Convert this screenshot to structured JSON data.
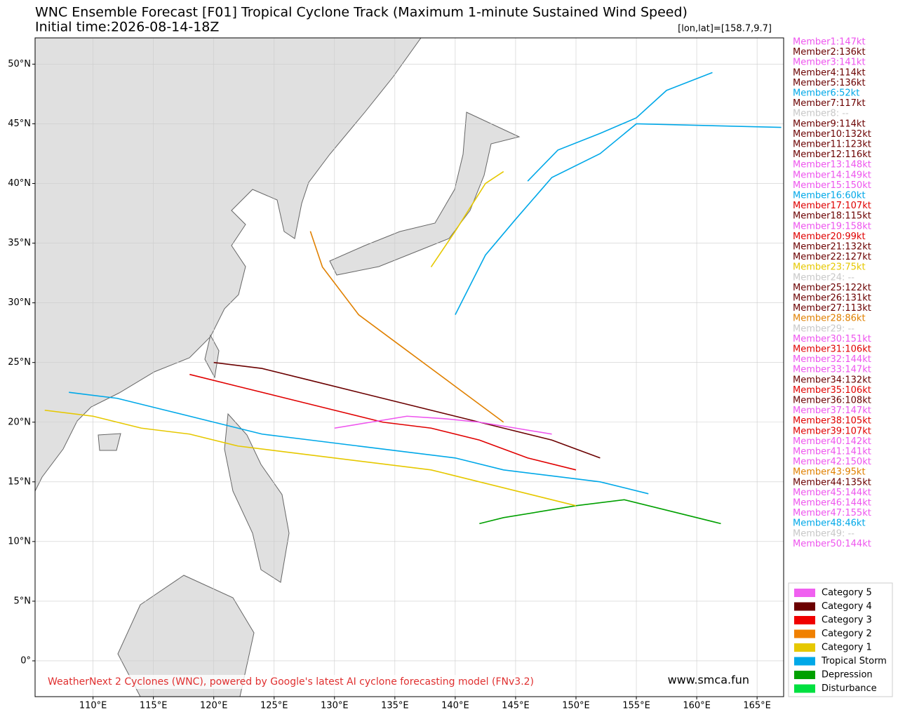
{
  "header": {
    "title": "WNC Ensemble Forecast [F01] Tropical Cyclone Track (Maximum 1-minute Sustained Wind Speed)",
    "subtitle": "Initial time:2026-08-14-18Z",
    "cursor": "[lon,lat]=[158.7,9.7]"
  },
  "map": {
    "xlim": [
      105.2,
      167.2
    ],
    "ylim": [
      -3,
      52.2
    ],
    "xticks": [
      {
        "value": 110,
        "label": "110°E"
      },
      {
        "value": 115,
        "label": "115°E"
      },
      {
        "value": 120,
        "label": "120°E"
      },
      {
        "value": 125,
        "label": "125°E"
      },
      {
        "value": 130,
        "label": "130°E"
      },
      {
        "value": 135,
        "label": "135°E"
      },
      {
        "value": 140,
        "label": "140°E"
      },
      {
        "value": 145,
        "label": "145°E"
      },
      {
        "value": 150,
        "label": "150°E"
      },
      {
        "value": 155,
        "label": "155°E"
      },
      {
        "value": 160,
        "label": "160°E"
      },
      {
        "value": 165,
        "label": "165°E"
      }
    ],
    "yticks": [
      {
        "value": 0,
        "label": "0°"
      },
      {
        "value": 5,
        "label": "5°N"
      },
      {
        "value": 10,
        "label": "10°N"
      },
      {
        "value": 15,
        "label": "15°N"
      },
      {
        "value": 20,
        "label": "20°N"
      },
      {
        "value": 25,
        "label": "25°N"
      },
      {
        "value": 30,
        "label": "30°N"
      },
      {
        "value": 35,
        "label": "35°N"
      },
      {
        "value": 40,
        "label": "40°N"
      },
      {
        "value": 45,
        "label": "45°N"
      },
      {
        "value": 50,
        "label": "50°N"
      }
    ],
    "grid": true
  },
  "members": [
    {
      "label": "Member1:147kt",
      "color": "#ee55ee"
    },
    {
      "label": "Member2:136kt",
      "color": "#6b0000"
    },
    {
      "label": "Member3:141kt",
      "color": "#ee55ee"
    },
    {
      "label": "Member4:114kt",
      "color": "#6b0000"
    },
    {
      "label": "Member5:136kt",
      "color": "#6b0000"
    },
    {
      "label": "Member6:52kt",
      "color": "#00a8e8"
    },
    {
      "label": "Member7:117kt",
      "color": "#6b0000"
    },
    {
      "label": "Member8: --",
      "color": "#c8c8c8"
    },
    {
      "label": "Member9:114kt",
      "color": "#6b0000"
    },
    {
      "label": "Member10:132kt",
      "color": "#6b0000"
    },
    {
      "label": "Member11:123kt",
      "color": "#6b0000"
    },
    {
      "label": "Member12:116kt",
      "color": "#6b0000"
    },
    {
      "label": "Member13:148kt",
      "color": "#ee55ee"
    },
    {
      "label": "Member14:149kt",
      "color": "#ee55ee"
    },
    {
      "label": "Member15:150kt",
      "color": "#ee55ee"
    },
    {
      "label": "Member16:60kt",
      "color": "#00a8e8"
    },
    {
      "label": "Member17:107kt",
      "color": "#e00000"
    },
    {
      "label": "Member18:115kt",
      "color": "#6b0000"
    },
    {
      "label": "Member19:158kt",
      "color": "#ee55ee"
    },
    {
      "label": "Member20:99kt",
      "color": "#e00000"
    },
    {
      "label": "Member21:132kt",
      "color": "#6b0000"
    },
    {
      "label": "Member22:127kt",
      "color": "#6b0000"
    },
    {
      "label": "Member23:75kt",
      "color": "#e6c800"
    },
    {
      "label": "Member24: --",
      "color": "#c8c8c8"
    },
    {
      "label": "Member25:122kt",
      "color": "#6b0000"
    },
    {
      "label": "Member26:131kt",
      "color": "#6b0000"
    },
    {
      "label": "Member27:113kt",
      "color": "#6b0000"
    },
    {
      "label": "Member28:86kt",
      "color": "#e08000"
    },
    {
      "label": "Member29: --",
      "color": "#c8c8c8"
    },
    {
      "label": "Member30:151kt",
      "color": "#ee55ee"
    },
    {
      "label": "Member31:106kt",
      "color": "#e00000"
    },
    {
      "label": "Member32:144kt",
      "color": "#ee55ee"
    },
    {
      "label": "Member33:147kt",
      "color": "#ee55ee"
    },
    {
      "label": "Member34:132kt",
      "color": "#6b0000"
    },
    {
      "label": "Member35:106kt",
      "color": "#e00000"
    },
    {
      "label": "Member36:108kt",
      "color": "#6b0000"
    },
    {
      "label": "Member37:147kt",
      "color": "#ee55ee"
    },
    {
      "label": "Member38:105kt",
      "color": "#e00000"
    },
    {
      "label": "Member39:107kt",
      "color": "#e00000"
    },
    {
      "label": "Member40:142kt",
      "color": "#ee55ee"
    },
    {
      "label": "Member41:141kt",
      "color": "#ee55ee"
    },
    {
      "label": "Member42:150kt",
      "color": "#ee55ee"
    },
    {
      "label": "Member43:95kt",
      "color": "#e08000"
    },
    {
      "label": "Member44:135kt",
      "color": "#6b0000"
    },
    {
      "label": "Member45:144kt",
      "color": "#ee55ee"
    },
    {
      "label": "Member46:144kt",
      "color": "#ee55ee"
    },
    {
      "label": "Member47:155kt",
      "color": "#ee55ee"
    },
    {
      "label": "Member48:46kt",
      "color": "#00a8e8"
    },
    {
      "label": "Member49: --",
      "color": "#c8c8c8"
    },
    {
      "label": "Member50:144kt",
      "color": "#ee55ee"
    }
  ],
  "legend": [
    {
      "label": "Category 5",
      "color": "#f060f0"
    },
    {
      "label": "Category 4",
      "color": "#6b0000"
    },
    {
      "label": "Category 3",
      "color": "#f00000"
    },
    {
      "label": "Category 2",
      "color": "#f08000"
    },
    {
      "label": "Category 1",
      "color": "#e6c800"
    },
    {
      "label": "Tropical Storm",
      "color": "#00a8e8"
    },
    {
      "label": "Depression",
      "color": "#00a000"
    },
    {
      "label": "Disturbance",
      "color": "#00e040"
    }
  ],
  "tracks": [
    {
      "color": "#00a8e8",
      "lon": [
        140,
        142.5,
        145,
        148,
        152,
        155,
        167
      ],
      "lat": [
        29,
        34,
        37,
        40.5,
        42.5,
        45,
        44.7
      ]
    },
    {
      "color": "#00a8e8",
      "lon": [
        146,
        148.5,
        152,
        155,
        157.5,
        161.3
      ],
      "lat": [
        40.2,
        42.8,
        44.2,
        45.5,
        47.8,
        49.3
      ]
    },
    {
      "color": "#e6c800",
      "lon": [
        138,
        140,
        142.5,
        144
      ],
      "lat": [
        33,
        36,
        40,
        41
      ]
    },
    {
      "color": "#6b0000",
      "lon": [
        152,
        148,
        144,
        140,
        136,
        132,
        128,
        124,
        120
      ],
      "lat": [
        17,
        18.5,
        19.5,
        20.5,
        21.5,
        22.5,
        23.5,
        24.5,
        25
      ]
    },
    {
      "color": "#e00000",
      "lon": [
        150,
        146,
        142,
        138,
        134,
        130,
        126,
        122,
        118
      ],
      "lat": [
        16,
        17,
        18.5,
        19.5,
        20,
        21,
        22,
        23,
        24
      ]
    },
    {
      "color": "#00a000",
      "lon": [
        162,
        158,
        154,
        150,
        147,
        144,
        142
      ],
      "lat": [
        11.5,
        12.5,
        13.5,
        13,
        12.5,
        12,
        11.5
      ]
    },
    {
      "color": "#00a8e8",
      "lon": [
        156,
        152,
        148,
        144,
        140,
        136,
        132,
        128,
        124,
        120,
        116,
        112,
        108
      ],
      "lat": [
        14,
        15,
        15.5,
        16,
        17,
        17.5,
        18,
        18.5,
        19,
        20,
        21,
        22,
        22.5
      ]
    },
    {
      "color": "#ee55ee",
      "lon": [
        148,
        145,
        142,
        139,
        136,
        133,
        130
      ],
      "lat": [
        19,
        19.5,
        20,
        20.3,
        20.5,
        20,
        19.5
      ]
    },
    {
      "color": "#e6c800",
      "lon": [
        150,
        146,
        142,
        138,
        134,
        130,
        126,
        122,
        118,
        114,
        110,
        106
      ],
      "lat": [
        13,
        14,
        15,
        16,
        16.5,
        17,
        17.5,
        18,
        19,
        19.5,
        20.5,
        21
      ]
    },
    {
      "color": "#e08000",
      "lon": [
        144,
        140,
        136,
        132,
        129,
        128
      ],
      "lat": [
        20,
        23,
        26,
        29,
        33,
        36
      ]
    }
  ],
  "footer": {
    "credit": "WeatherNext 2 Cyclones (WNC), powered by Google's latest AI cyclone forecasting model (FNv3.2)",
    "site": "www.smca.fun"
  }
}
